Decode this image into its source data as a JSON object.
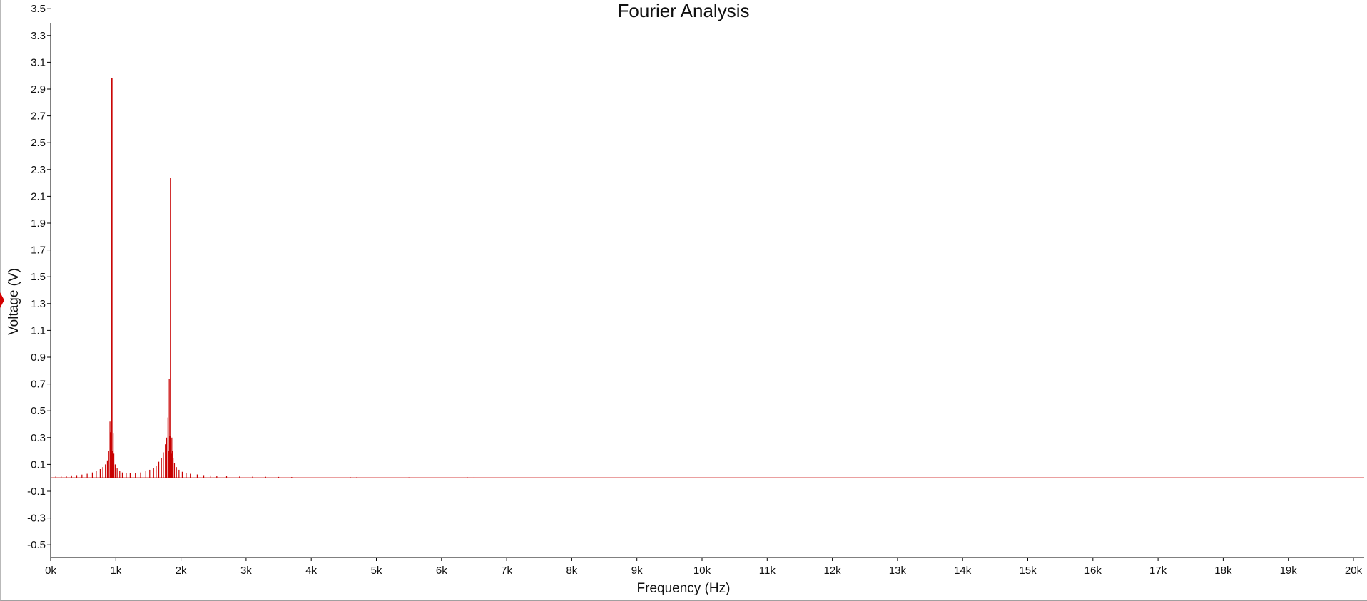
{
  "colors": {
    "series": "#c80000",
    "axis": "#000000",
    "background": "#ffffff",
    "marker": "#d40000"
  },
  "chart_data": {
    "type": "bar",
    "title": "Fourier Analysis",
    "xlabel": "Frequency (Hz)",
    "ylabel": "Voltage (V)",
    "xlim": [
      0,
      20000
    ],
    "ylim": [
      -0.6,
      3.6
    ],
    "grid": false,
    "legend": "none",
    "x_ticks": [
      {
        "value": 0,
        "label": "0k"
      },
      {
        "value": 1000,
        "label": "1k"
      },
      {
        "value": 2000,
        "label": "2k"
      },
      {
        "value": 3000,
        "label": "3k"
      },
      {
        "value": 4000,
        "label": "4k"
      },
      {
        "value": 5000,
        "label": "5k"
      },
      {
        "value": 6000,
        "label": "6k"
      },
      {
        "value": 7000,
        "label": "7k"
      },
      {
        "value": 8000,
        "label": "8k"
      },
      {
        "value": 9000,
        "label": "9k"
      },
      {
        "value": 10000,
        "label": "10k"
      },
      {
        "value": 11000,
        "label": "11k"
      },
      {
        "value": 12000,
        "label": "12k"
      },
      {
        "value": 13000,
        "label": "13k"
      },
      {
        "value": 14000,
        "label": "14k"
      },
      {
        "value": 15000,
        "label": "15k"
      },
      {
        "value": 16000,
        "label": "16k"
      },
      {
        "value": 17000,
        "label": "17k"
      },
      {
        "value": 18000,
        "label": "18k"
      },
      {
        "value": 19000,
        "label": "19k"
      },
      {
        "value": 20000,
        "label": "20k"
      }
    ],
    "y_ticks": [
      {
        "value": 3.5,
        "label": "3.5"
      },
      {
        "value": 3.3,
        "label": "3.3"
      },
      {
        "value": 3.1,
        "label": "3.1"
      },
      {
        "value": 2.9,
        "label": "2.9"
      },
      {
        "value": 2.7,
        "label": "2.7"
      },
      {
        "value": 2.5,
        "label": "2.5"
      },
      {
        "value": 2.3,
        "label": "2.3"
      },
      {
        "value": 2.1,
        "label": "2.1"
      },
      {
        "value": 1.9,
        "label": "1.9"
      },
      {
        "value": 1.7,
        "label": "1.7"
      },
      {
        "value": 1.5,
        "label": "1.5"
      },
      {
        "value": 1.3,
        "label": "1.3"
      },
      {
        "value": 1.1,
        "label": "1.1"
      },
      {
        "value": 0.9,
        "label": "0.9"
      },
      {
        "value": 0.7,
        "label": "0.7"
      },
      {
        "value": 0.5,
        "label": "0.5"
      },
      {
        "value": 0.3,
        "label": "0.3"
      },
      {
        "value": 0.1,
        "label": "0.1"
      },
      {
        "value": -0.1,
        "label": "-0.1"
      },
      {
        "value": -0.3,
        "label": "-0.3"
      },
      {
        "value": -0.5,
        "label": "-0.5"
      }
    ],
    "peaks": [
      {
        "frequency": 940,
        "voltage": 2.98
      },
      {
        "frequency": 1840,
        "voltage": 2.24
      }
    ],
    "series": [
      {
        "x": [
          80,
          160,
          240,
          320,
          400,
          480,
          560,
          640,
          700,
          760,
          800,
          840,
          870,
          890,
          910,
          920,
          930,
          940,
          950,
          960,
          970,
          990,
          1020,
          1060,
          1100,
          1160,
          1220,
          1300,
          1380,
          1460,
          1520,
          1580,
          1620,
          1660,
          1700,
          1730,
          1760,
          1780,
          1800,
          1810,
          1820,
          1830,
          1840,
          1850,
          1860,
          1870,
          1880,
          1900,
          1930,
          1970,
          2020,
          2080,
          2150,
          2250,
          2350,
          2450,
          2550,
          2700,
          2900,
          3100,
          3300,
          3500,
          3700,
          4600,
          4700,
          5500,
          6400,
          6500
        ],
        "y": [
          0.012,
          0.014,
          0.016,
          0.018,
          0.02,
          0.024,
          0.03,
          0.04,
          0.05,
          0.065,
          0.08,
          0.1,
          0.13,
          0.2,
          0.42,
          0.34,
          0.2,
          2.98,
          0.2,
          0.33,
          0.18,
          0.1,
          0.07,
          0.05,
          0.04,
          0.035,
          0.035,
          0.035,
          0.04,
          0.05,
          0.06,
          0.07,
          0.09,
          0.12,
          0.15,
          0.19,
          0.25,
          0.3,
          0.45,
          0.2,
          0.74,
          0.31,
          2.24,
          0.18,
          0.3,
          0.2,
          0.15,
          0.11,
          0.08,
          0.06,
          0.045,
          0.035,
          0.03,
          0.025,
          0.02,
          0.018,
          0.015,
          0.012,
          0.01,
          0.009,
          0.008,
          0.007,
          0.006,
          0.005,
          0.005,
          0.004,
          0.004,
          0.004
        ]
      }
    ]
  }
}
